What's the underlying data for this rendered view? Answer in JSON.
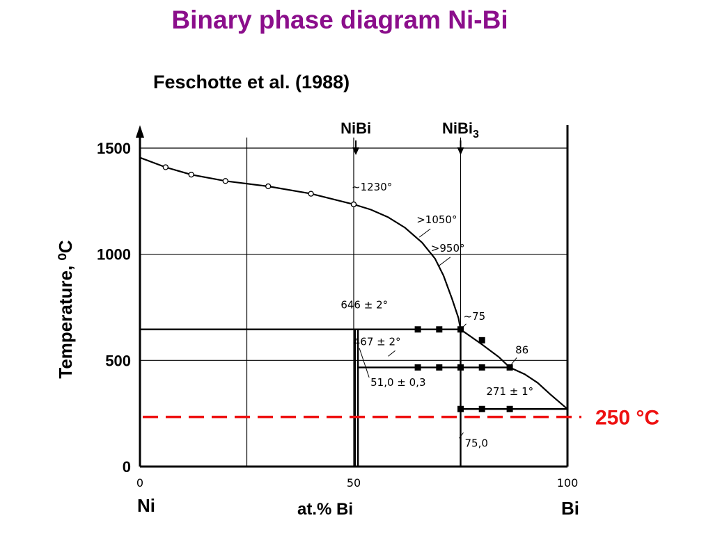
{
  "page": {
    "title": "Binary phase diagram Ni-Bi",
    "title_color": "#8b0e8b"
  },
  "chart_data": {
    "type": "phase-diagram",
    "subtitle": "Feschotte et al. (1988)",
    "xlabel": "at.% Bi",
    "ylabel": "Temperature, ⁰C",
    "xlim": [
      0,
      100
    ],
    "ylim": [
      0,
      1550
    ],
    "x_ticks": [
      {
        "value": 0,
        "label": "0"
      },
      {
        "value": 50,
        "label": "50"
      },
      {
        "value": 100,
        "label": "100"
      }
    ],
    "y_ticks": [
      {
        "value": 0,
        "label": "0"
      },
      {
        "value": 500,
        "label": "500"
      },
      {
        "value": 1000,
        "label": "1000"
      },
      {
        "value": 1500,
        "label": "1500"
      }
    ],
    "grid_x": [
      25,
      50,
      75
    ],
    "grid_y": [
      500,
      1000,
      1500
    ],
    "grid": true,
    "left_element": "Ni",
    "right_element": "Bi",
    "compounds": [
      {
        "label": "NiBi",
        "x": 50.5
      },
      {
        "label": "NiBi",
        "subscript": "3",
        "x": 75
      }
    ],
    "liquidus": [
      [
        0,
        1455
      ],
      [
        6,
        1410
      ],
      [
        12,
        1375
      ],
      [
        20,
        1345
      ],
      [
        30,
        1320
      ],
      [
        40,
        1285
      ],
      [
        50,
        1235
      ],
      [
        54,
        1210
      ],
      [
        58,
        1175
      ],
      [
        62,
        1125
      ],
      [
        66,
        1055
      ],
      [
        69,
        980
      ],
      [
        71,
        900
      ],
      [
        73,
        790
      ],
      [
        74.5,
        700
      ],
      [
        75,
        646
      ],
      [
        80,
        575
      ],
      [
        84,
        515
      ],
      [
        86.5,
        467
      ],
      [
        90,
        435
      ],
      [
        93,
        395
      ],
      [
        96,
        340
      ],
      [
        100,
        271
      ]
    ],
    "liquidus_markers": [
      [
        6,
        1410
      ],
      [
        12,
        1375
      ],
      [
        20,
        1345
      ],
      [
        30,
        1320
      ],
      [
        40,
        1285
      ],
      [
        50,
        1235
      ]
    ],
    "square_markers": [
      [
        65,
        646
      ],
      [
        70,
        646
      ],
      [
        75,
        646
      ],
      [
        80,
        595
      ],
      [
        65,
        467
      ],
      [
        70,
        467
      ],
      [
        75,
        467
      ],
      [
        80,
        467
      ],
      [
        86.5,
        467
      ],
      [
        75,
        271
      ],
      [
        80,
        271
      ],
      [
        86.5,
        271
      ]
    ],
    "isotherms": [
      {
        "temperature": 646,
        "x_from": 0,
        "x_to": 75
      },
      {
        "temperature": 467,
        "x_from": 51,
        "x_to": 86.5
      },
      {
        "temperature": 271,
        "x_from": 75,
        "x_to": 100
      }
    ],
    "phase_boundaries": [
      {
        "x": 51,
        "t_from": 0,
        "t_to": 646
      },
      {
        "x": 50.3,
        "t_from": 0,
        "t_to": 646
      },
      {
        "x": 75,
        "t_from": 0,
        "t_to": 646
      }
    ],
    "annotations": [
      {
        "text": "~1230°",
        "x": 50,
        "t": 1235
      },
      {
        "text": ">1050°",
        "x": 66,
        "t": 1100
      },
      {
        "text": ">950°",
        "x": 70,
        "t": 960
      },
      {
        "text": "646 ± 2°",
        "x": 58,
        "t": 700
      },
      {
        "text": "~75",
        "x": 75,
        "t": 646
      },
      {
        "text": "467 ± 2°",
        "x": 61,
        "t": 500
      },
      {
        "text": "86",
        "x": 86.5,
        "t": 467
      },
      {
        "text": "271 ± 1°",
        "x": 81,
        "t": 305
      },
      {
        "text": "51,0 ± 0,3",
        "x": 51,
        "t": 400
      },
      {
        "text": "75,0",
        "x": 75,
        "t": 140
      }
    ],
    "reference_line": {
      "temperature": 250,
      "label": "250 °C",
      "color": "#ee1111"
    }
  }
}
